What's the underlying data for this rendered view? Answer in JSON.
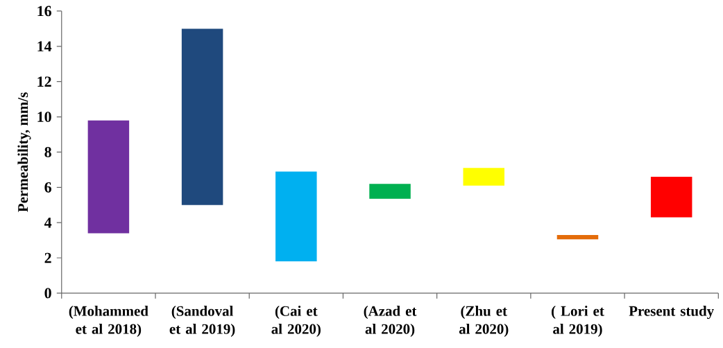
{
  "chart_data": {
    "type": "bar",
    "ylabel": "Permeability, mm/s",
    "categories": [
      "(Mohammed et al 2018)",
      "(Sandoval et al 2019)",
      "(Cai et al 2020)",
      "(Azad et al 2020)",
      "(Zhu et al 2020)",
      "( Lori et al 2019)",
      "Present study"
    ],
    "base": [
      3.4,
      5.0,
      1.8,
      5.35,
      6.1,
      3.05,
      4.3
    ],
    "values": [
      6.4,
      10.0,
      5.1,
      0.85,
      1.0,
      0.25,
      2.3
    ],
    "colors": [
      "#7030a0",
      "#1f497d",
      "#00b0f0",
      "#00b050",
      "#ffff00",
      "#e46c0a",
      "#ff0000"
    ],
    "ylim": [
      0,
      16
    ],
    "yticks": [
      0,
      2,
      4,
      6,
      8,
      10,
      12,
      14,
      16
    ]
  }
}
